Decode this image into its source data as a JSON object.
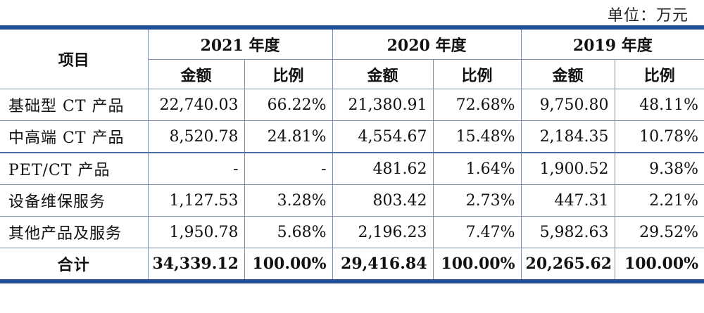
{
  "unit_label": "单位：万元",
  "header": {
    "item_label": "项目",
    "years": [
      "2021 年度",
      "2020 年度",
      "2019 年度"
    ],
    "amount_label": "金额",
    "ratio_label": "比例"
  },
  "rows": [
    {
      "name": "基础型 CT 产品",
      "cells": [
        "22,740.03",
        "66.22%",
        "21,380.91",
        "72.68%",
        "9,750.80",
        "48.11%"
      ]
    },
    {
      "name": "中高端 CT 产品",
      "cells": [
        "8,520.78",
        "24.81%",
        "4,554.67",
        "15.48%",
        "2,184.35",
        "10.78%"
      ]
    },
    {
      "name": "PET/CT 产品",
      "cells": [
        "-",
        "-",
        "481.62",
        "1.64%",
        "1,900.52",
        "9.38%"
      ]
    },
    {
      "name": "设备维保服务",
      "cells": [
        "1,127.53",
        "3.28%",
        "803.42",
        "2.73%",
        "447.31",
        "2.21%"
      ]
    },
    {
      "name": "其他产品及服务",
      "cells": [
        "1,950.78",
        "5.68%",
        "2,196.23",
        "7.47%",
        "5,982.63",
        "29.52%"
      ]
    }
  ],
  "total": {
    "name": "合计",
    "cells": [
      "34,339.12",
      "100.00%",
      "29,416.84",
      "100.00%",
      "20,265.62",
      "100.00%"
    ]
  }
}
